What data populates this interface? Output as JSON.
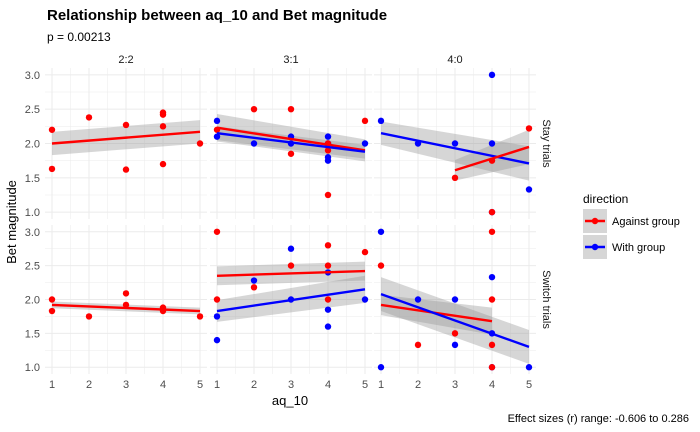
{
  "title": "Relationship between aq_10 and Bet magnitude",
  "subtitle": "p = 0.00213",
  "caption": "Effect sizes (r) range: -0.606 to 0.286",
  "chart_data": {
    "type": "scatter",
    "xlabel": "aq_10",
    "ylabel": "Bet magnitude",
    "xlim": [
      1,
      5
    ],
    "ylim": [
      0.9,
      3.1
    ],
    "x_ticks": [
      "1",
      "2",
      "3",
      "4",
      "5"
    ],
    "y_ticks": [
      "1.0",
      "1.5",
      "2.0",
      "2.5",
      "3.0"
    ],
    "grid": true,
    "col_facets": [
      "2:2",
      "3:1",
      "4:0"
    ],
    "row_facets": [
      "Stay trials",
      "Switch trials"
    ],
    "legend": {
      "title": "direction",
      "position": "right",
      "entries": [
        {
          "label": "Against group",
          "color": "#ff0000"
        },
        {
          "label": "With group",
          "color": "#0000ff"
        }
      ]
    },
    "panels": [
      {
        "col": "2:2",
        "row": "Stay trials",
        "points": [
          {
            "x": 1,
            "y": 2.2,
            "g": "Against group"
          },
          {
            "x": 1,
            "y": 1.63,
            "g": "Against group"
          },
          {
            "x": 2,
            "y": 2.38,
            "g": "Against group"
          },
          {
            "x": 3,
            "y": 2.27,
            "g": "Against group"
          },
          {
            "x": 3,
            "y": 1.62,
            "g": "Against group"
          },
          {
            "x": 4,
            "y": 2.45,
            "g": "Against group"
          },
          {
            "x": 4,
            "y": 2.42,
            "g": "Against group"
          },
          {
            "x": 4,
            "y": 2.25,
            "g": "Against group"
          },
          {
            "x": 4,
            "y": 1.7,
            "g": "Against group"
          },
          {
            "x": 5,
            "y": 2.0,
            "g": "Against group"
          }
        ],
        "fits": [
          {
            "g": "Against group",
            "x": [
              1,
              5
            ],
            "y": [
              2.0,
              2.17
            ],
            "se": [
              0.17,
              0.17
            ]
          }
        ]
      },
      {
        "col": "3:1",
        "row": "Stay trials",
        "points": [
          {
            "x": 1,
            "y": 2.33,
            "g": "With group"
          },
          {
            "x": 1,
            "y": 2.1,
            "g": "With group"
          },
          {
            "x": 2,
            "y": 2.0,
            "g": "With group"
          },
          {
            "x": 3,
            "y": 2.1,
            "g": "With group"
          },
          {
            "x": 3,
            "y": 2.0,
            "g": "With group"
          },
          {
            "x": 4,
            "y": 2.1,
            "g": "With group"
          },
          {
            "x": 4,
            "y": 1.8,
            "g": "With group"
          },
          {
            "x": 4,
            "y": 1.75,
            "g": "With group"
          },
          {
            "x": 4,
            "y": 2.0,
            "g": "With group"
          },
          {
            "x": 5,
            "y": 2.0,
            "g": "With group"
          },
          {
            "x": 1,
            "y": 2.2,
            "g": "Against group"
          },
          {
            "x": 2,
            "y": 2.5,
            "g": "Against group"
          },
          {
            "x": 3,
            "y": 2.5,
            "g": "Against group"
          },
          {
            "x": 3,
            "y": 1.85,
            "g": "Against group"
          },
          {
            "x": 4,
            "y": 2.0,
            "g": "Against group"
          },
          {
            "x": 4,
            "y": 1.9,
            "g": "Against group"
          },
          {
            "x": 4,
            "y": 1.25,
            "g": "Against group"
          },
          {
            "x": 5,
            "y": 2.33,
            "g": "Against group"
          }
        ],
        "fits": [
          {
            "g": "Against group",
            "x": [
              1,
              5
            ],
            "y": [
              2.23,
              1.9
            ],
            "se": [
              0.2,
              0.16
            ]
          },
          {
            "g": "With group",
            "x": [
              1,
              5
            ],
            "y": [
              2.15,
              1.88
            ],
            "se": [
              0.1,
              0.1
            ]
          }
        ]
      },
      {
        "col": "4:0",
        "row": "Stay trials",
        "points": [
          {
            "x": 1,
            "y": 2.33,
            "g": "With group"
          },
          {
            "x": 2,
            "y": 2.0,
            "g": "With group"
          },
          {
            "x": 3,
            "y": 2.0,
            "g": "With group"
          },
          {
            "x": 4,
            "y": 3.0,
            "g": "With group"
          },
          {
            "x": 4,
            "y": 2.0,
            "g": "With group"
          },
          {
            "x": 4,
            "y": 1.0,
            "g": "With group"
          },
          {
            "x": 5,
            "y": 1.33,
            "g": "With group"
          },
          {
            "x": 3,
            "y": 1.5,
            "g": "Against group"
          },
          {
            "x": 4,
            "y": 1.75,
            "g": "Against group"
          },
          {
            "x": 4,
            "y": 1.0,
            "g": "Against group"
          },
          {
            "x": 5,
            "y": 2.22,
            "g": "Against group"
          }
        ],
        "fits": [
          {
            "g": "With group",
            "x": [
              1,
              5
            ],
            "y": [
              2.15,
              1.71
            ],
            "se": [
              0.17,
              0.25
            ]
          },
          {
            "g": "Against group",
            "x": [
              3,
              5
            ],
            "y": [
              1.61,
              1.95
            ],
            "se": [
              0.15,
              0.25
            ]
          }
        ]
      },
      {
        "col": "2:2",
        "row": "Switch trials",
        "points": [
          {
            "x": 1,
            "y": 2.0,
            "g": "Against group"
          },
          {
            "x": 1,
            "y": 1.83,
            "g": "Against group"
          },
          {
            "x": 2,
            "y": 1.75,
            "g": "Against group"
          },
          {
            "x": 3,
            "y": 2.09,
            "g": "Against group"
          },
          {
            "x": 3,
            "y": 1.92,
            "g": "Against group"
          },
          {
            "x": 4,
            "y": 1.88,
            "g": "Against group"
          },
          {
            "x": 4,
            "y": 1.83,
            "g": "Against group"
          },
          {
            "x": 5,
            "y": 1.75,
            "g": "Against group"
          }
        ],
        "fits": [
          {
            "g": "Against group",
            "x": [
              1,
              5
            ],
            "y": [
              1.92,
              1.83
            ],
            "se": [
              0.05,
              0.05
            ]
          }
        ]
      },
      {
        "col": "3:1",
        "row": "Switch trials",
        "points": [
          {
            "x": 1,
            "y": 1.75,
            "g": "With group"
          },
          {
            "x": 1,
            "y": 1.4,
            "g": "With group"
          },
          {
            "x": 2,
            "y": 2.28,
            "g": "With group"
          },
          {
            "x": 3,
            "y": 2.75,
            "g": "With group"
          },
          {
            "x": 3,
            "y": 2.0,
            "g": "With group"
          },
          {
            "x": 4,
            "y": 2.4,
            "g": "With group"
          },
          {
            "x": 4,
            "y": 1.85,
            "g": "With group"
          },
          {
            "x": 4,
            "y": 1.6,
            "g": "With group"
          },
          {
            "x": 5,
            "y": 2.0,
            "g": "With group"
          },
          {
            "x": 1,
            "y": 3.0,
            "g": "Against group"
          },
          {
            "x": 1,
            "y": 2.0,
            "g": "Against group"
          },
          {
            "x": 2,
            "y": 2.18,
            "g": "Against group"
          },
          {
            "x": 3,
            "y": 2.5,
            "g": "Against group"
          },
          {
            "x": 4,
            "y": 2.8,
            "g": "Against group"
          },
          {
            "x": 4,
            "y": 2.5,
            "g": "Against group"
          },
          {
            "x": 4,
            "y": 2.0,
            "g": "Against group"
          },
          {
            "x": 5,
            "y": 2.7,
            "g": "Against group"
          }
        ],
        "fits": [
          {
            "g": "Against group",
            "x": [
              1,
              5
            ],
            "y": [
              2.35,
              2.42
            ],
            "se": [
              0.14,
              0.14
            ]
          },
          {
            "g": "With group",
            "x": [
              1,
              5
            ],
            "y": [
              1.83,
              2.15
            ],
            "se": [
              0.16,
              0.2
            ]
          }
        ]
      },
      {
        "col": "4:0",
        "row": "Switch trials",
        "points": [
          {
            "x": 1,
            "y": 3.0,
            "g": "With group"
          },
          {
            "x": 1,
            "y": 1.0,
            "g": "With group"
          },
          {
            "x": 2,
            "y": 2.0,
            "g": "With group"
          },
          {
            "x": 3,
            "y": 2.0,
            "g": "With group"
          },
          {
            "x": 3,
            "y": 1.33,
            "g": "With group"
          },
          {
            "x": 4,
            "y": 2.33,
            "g": "With group"
          },
          {
            "x": 4,
            "y": 1.5,
            "g": "With group"
          },
          {
            "x": 4,
            "y": 1.0,
            "g": "With group"
          },
          {
            "x": 5,
            "y": 1.0,
            "g": "With group"
          },
          {
            "x": 1,
            "y": 2.5,
            "g": "Against group"
          },
          {
            "x": 2,
            "y": 1.33,
            "g": "Against group"
          },
          {
            "x": 3,
            "y": 1.5,
            "g": "Against group"
          },
          {
            "x": 4,
            "y": 3.0,
            "g": "Against group"
          },
          {
            "x": 4,
            "y": 2.0,
            "g": "Against group"
          },
          {
            "x": 4,
            "y": 1.33,
            "g": "Against group"
          },
          {
            "x": 4,
            "y": 1.0,
            "g": "Against group"
          }
        ],
        "fits": [
          {
            "g": "Against group",
            "x": [
              1,
              4
            ],
            "y": [
              1.92,
              1.68
            ],
            "se": [
              0.15,
              0.2
            ]
          },
          {
            "g": "With group",
            "x": [
              1,
              5
            ],
            "y": [
              2.08,
              1.3
            ],
            "se": [
              0.25,
              0.25
            ]
          }
        ]
      }
    ]
  }
}
